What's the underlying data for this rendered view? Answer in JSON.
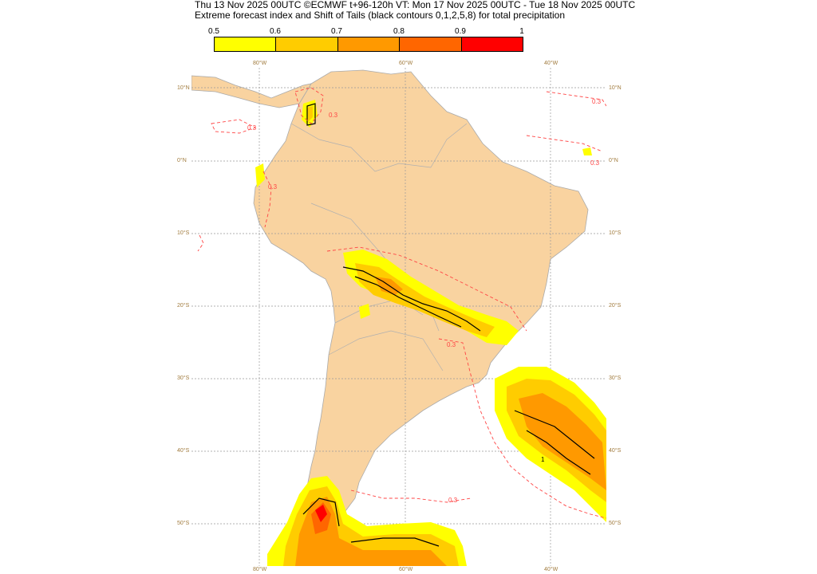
{
  "header": {
    "line1": "Thu 13 Nov 2025 00UTC ©ECMWF t+96-120h  VT: Mon 17 Nov 2025 00UTC - Tue 18 Nov 2025 00UTC",
    "line2": "Extreme forecast index and Shift of Tails (black contours 0,1,2,5,8) for total precipitation"
  },
  "legend": {
    "ticks": [
      "0.5",
      "0.6",
      "0.7",
      "0.8",
      "0.9",
      "1"
    ],
    "colors": [
      "#ffff00",
      "#ffcc00",
      "#ff9900",
      "#ff6600",
      "#ff0000"
    ]
  },
  "map": {
    "land_color": "#f9d3a0",
    "ocean_color": "#ffffff",
    "grid_color": "#999999",
    "lon_labels": [
      "80°W",
      "60°W",
      "40°W"
    ],
    "lat_labels": [
      "10°N",
      "0°N",
      "10°S",
      "20°S",
      "30°S",
      "40°S",
      "50°S"
    ],
    "contour_labels": [
      "0.3",
      "0.3",
      "0.3",
      "0.3",
      "0.3",
      "0.3",
      "0.3"
    ],
    "sot_labels": [
      "1"
    ]
  }
}
